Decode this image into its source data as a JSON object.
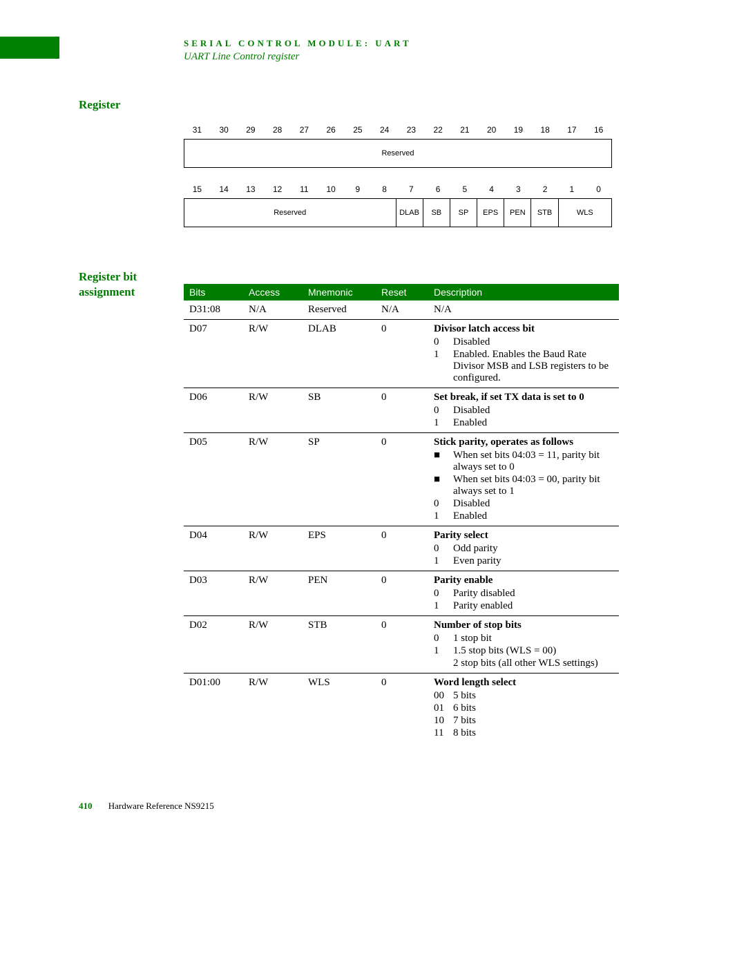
{
  "header": {
    "title": "SERIAL CONTROL MODULE: UART",
    "subtitle": "UART Line Control register"
  },
  "sections": {
    "register": "Register",
    "bit_assignment": "Register bit\nassignment"
  },
  "reg_diagram": {
    "row1_bits": [
      "31",
      "30",
      "29",
      "28",
      "27",
      "26",
      "25",
      "24",
      "23",
      "22",
      "21",
      "20",
      "19",
      "18",
      "17",
      "16"
    ],
    "row1_fields": [
      {
        "label": "Reserved",
        "span": 16
      }
    ],
    "row2_bits": [
      "15",
      "14",
      "13",
      "12",
      "11",
      "10",
      "9",
      "8",
      "7",
      "6",
      "5",
      "4",
      "3",
      "2",
      "1",
      "0"
    ],
    "row2_fields": [
      {
        "label": "Reserved",
        "span": 8
      },
      {
        "label": "DLAB",
        "span": 1
      },
      {
        "label": "SB",
        "span": 1
      },
      {
        "label": "SP",
        "span": 1
      },
      {
        "label": "EPS",
        "span": 1
      },
      {
        "label": "PEN",
        "span": 1
      },
      {
        "label": "STB",
        "span": 1
      },
      {
        "label": "WLS",
        "span": 2
      }
    ]
  },
  "table": {
    "columns": [
      "Bits",
      "Access",
      "Mnemonic",
      "Reset",
      "Description"
    ],
    "rows": [
      {
        "bits": "D31:08",
        "access": "N/A",
        "mnemonic": "Reserved",
        "reset": "N/A",
        "desc_title": "",
        "desc_plain": "N/A",
        "items": []
      },
      {
        "bits": "D07",
        "access": "R/W",
        "mnemonic": "DLAB",
        "reset": "0",
        "desc_title": "Divisor latch access bit",
        "items": [
          {
            "k": "0",
            "v": "Disabled"
          },
          {
            "k": "1",
            "v": "Enabled. Enables the Baud Rate Divisor MSB and LSB registers to be configured."
          }
        ]
      },
      {
        "bits": "D06",
        "access": "R/W",
        "mnemonic": "SB",
        "reset": "0",
        "desc_title": "Set break, if set TX data is set to 0",
        "items": [
          {
            "k": "0",
            "v": "Disabled"
          },
          {
            "k": "1",
            "v": "Enabled"
          }
        ]
      },
      {
        "bits": "D05",
        "access": "R/W",
        "mnemonic": "SP",
        "reset": "0",
        "desc_title": "Stick parity, operates as follows",
        "items": [
          {
            "k": "■",
            "v": "When set bits 04:03 = 11, parity bit always set to 0"
          },
          {
            "k": "■",
            "v": "When set bits 04:03 = 00, parity bit always set to 1"
          },
          {
            "k": "0",
            "v": "Disabled"
          },
          {
            "k": "1",
            "v": "Enabled"
          }
        ]
      },
      {
        "bits": "D04",
        "access": "R/W",
        "mnemonic": "EPS",
        "reset": "0",
        "desc_title": "Parity select",
        "items": [
          {
            "k": "0",
            "v": "Odd parity"
          },
          {
            "k": "1",
            "v": "Even parity"
          }
        ]
      },
      {
        "bits": "D03",
        "access": "R/W",
        "mnemonic": "PEN",
        "reset": "0",
        "desc_title": "Parity enable",
        "items": [
          {
            "k": "0",
            "v": "Parity disabled"
          },
          {
            "k": "1",
            "v": "Parity enabled"
          }
        ]
      },
      {
        "bits": "D02",
        "access": "R/W",
        "mnemonic": "STB",
        "reset": "0",
        "desc_title": "Number of stop bits",
        "items": [
          {
            "k": "0",
            "v": "1 stop bit"
          },
          {
            "k": "1",
            "v": "1.5 stop bits (WLS = 00)"
          },
          {
            "k": "",
            "v": "2 stop bits (all other WLS settings)"
          }
        ]
      },
      {
        "bits": "D01:00",
        "access": "R/W",
        "mnemonic": "WLS",
        "reset": "0",
        "desc_title": "Word length select",
        "items": [
          {
            "k": "00",
            "v": "5 bits"
          },
          {
            "k": "01",
            "v": "6 bits"
          },
          {
            "k": "10",
            "v": "7 bits"
          },
          {
            "k": "11",
            "v": "8 bits"
          }
        ]
      }
    ]
  },
  "footer": {
    "page": "410",
    "text": "Hardware Reference NS9215"
  },
  "colors": {
    "green": "#007d00",
    "white": "#ffffff",
    "black": "#000000"
  }
}
